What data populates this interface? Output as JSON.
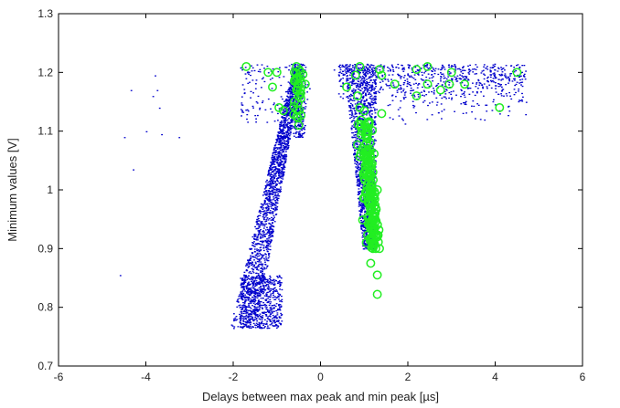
{
  "chart_data": {
    "type": "scatter",
    "title": "",
    "xlabel": "Delays between max peak and min peak [µs]",
    "ylabel": "Minimum values [V]",
    "xlim": [
      -6,
      6
    ],
    "ylim": [
      0.7,
      1.3
    ],
    "xticks": [
      -6,
      -4,
      -2,
      0,
      2,
      4,
      6
    ],
    "yticks": [
      0.7,
      0.8,
      0.9,
      1,
      1.1,
      1.2,
      1.3
    ],
    "xtick_labels": [
      "-6",
      "-4",
      "-2",
      "0",
      "2",
      "4",
      "6"
    ],
    "ytick_labels": [
      "0.7",
      "0.8",
      "0.9",
      "1",
      "1.1",
      "1.2",
      "1.3"
    ],
    "grid": false,
    "legend": "none",
    "series": [
      {
        "marker": "dot",
        "color": "#0000cc",
        "points": [
          [
            -4.6,
            0.855
          ],
          [
            -4.5,
            1.09
          ],
          [
            -4.35,
            1.17
          ],
          [
            -4.3,
            1.035
          ],
          [
            -4.0,
            1.1
          ],
          [
            -3.85,
            1.16
          ],
          [
            -3.8,
            1.195
          ],
          [
            -3.75,
            1.17
          ],
          [
            -3.7,
            1.14
          ],
          [
            -3.65,
            1.095
          ],
          [
            -3.25,
            1.09
          ],
          [
            -2.0,
            0.765
          ],
          [
            -2.0,
            0.79
          ],
          [
            -1.6,
            0.9
          ],
          [
            -1.2,
            1.0
          ],
          [
            -0.8,
            1.1
          ],
          [
            -0.6,
            1.2
          ],
          [
            -0.5,
            1.15
          ],
          [
            0.3,
            1.205
          ],
          [
            2.0,
            1.21
          ],
          [
            3.0,
            1.19
          ],
          [
            4.2,
            1.205
          ],
          [
            4.6,
            1.165
          ],
          [
            4.7,
            1.15
          ]
        ]
      },
      {
        "marker": "circle",
        "color": "#22ee22",
        "points": [
          [
            -1.7,
            1.21
          ],
          [
            -1.2,
            1.2
          ],
          [
            -1.0,
            1.2
          ],
          [
            -1.1,
            1.175
          ],
          [
            -0.95,
            1.14
          ],
          [
            -0.85,
            1.135
          ],
          [
            -0.6,
            1.2
          ],
          [
            -0.55,
            1.21
          ],
          [
            -0.6,
            1.185
          ],
          [
            -0.5,
            1.18
          ],
          [
            -0.55,
            1.17
          ],
          [
            -0.5,
            1.16
          ],
          [
            -0.6,
            1.15
          ],
          [
            -0.55,
            1.125
          ],
          [
            -0.5,
            1.11
          ],
          [
            -0.35,
            1.18
          ],
          [
            0.6,
            1.175
          ],
          [
            0.9,
            1.21
          ],
          [
            0.8,
            1.195
          ],
          [
            0.85,
            1.16
          ],
          [
            0.9,
            1.14
          ],
          [
            1.0,
            1.135
          ],
          [
            0.95,
            1.1
          ],
          [
            1.05,
            1.08
          ],
          [
            1.1,
            1.05
          ],
          [
            1.2,
            1.03
          ],
          [
            1.0,
            1.02
          ],
          [
            1.3,
            1.0
          ],
          [
            1.1,
            0.98
          ],
          [
            1.25,
            0.96
          ],
          [
            1.15,
            0.94
          ],
          [
            1.3,
            0.92
          ],
          [
            1.05,
            0.91
          ],
          [
            1.2,
            0.9
          ],
          [
            1.35,
            0.9
          ],
          [
            1.15,
            0.875
          ],
          [
            1.3,
            0.855
          ],
          [
            1.3,
            0.822
          ],
          [
            1.4,
            1.13
          ],
          [
            1.35,
            1.205
          ],
          [
            1.4,
            1.195
          ],
          [
            1.7,
            1.18
          ],
          [
            2.2,
            1.16
          ],
          [
            2.2,
            1.205
          ],
          [
            2.45,
            1.21
          ],
          [
            2.45,
            1.18
          ],
          [
            2.75,
            1.17
          ],
          [
            2.95,
            1.18
          ],
          [
            3.0,
            1.2
          ],
          [
            3.3,
            1.18
          ],
          [
            4.1,
            1.14
          ],
          [
            4.5,
            1.2
          ]
        ]
      }
    ]
  }
}
